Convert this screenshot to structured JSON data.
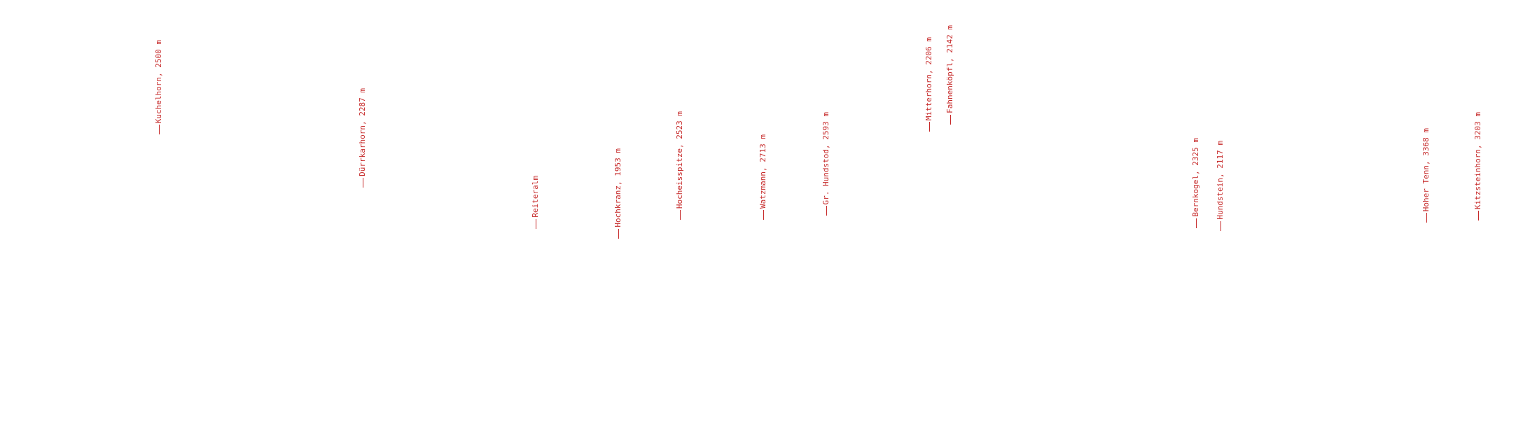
{
  "peaks": [
    {
      "label": "Kuchelhorn, 2500 m"
    },
    {
      "label": "Dürrkarhorn, 2287 m"
    },
    {
      "label": "Reiteralm"
    },
    {
      "label": "Hochkranz, 1953 m"
    },
    {
      "label": "Hocheisspitze, 2523 m"
    },
    {
      "label": "Watzmann, 2713 m"
    },
    {
      "label": "Gr. Hundstod, 2593 m"
    },
    {
      "label": "Mitterhorn, 2206 m"
    },
    {
      "label": "Fahnenköpfl, 2142 m"
    },
    {
      "label": "Bernkogel, 2325 m"
    },
    {
      "label": "Hundstein, 2117 m"
    },
    {
      "label": "Hoher Tenn, 3368 m"
    },
    {
      "label": "Kitzsteinhorn, 3203 m"
    }
  ]
}
